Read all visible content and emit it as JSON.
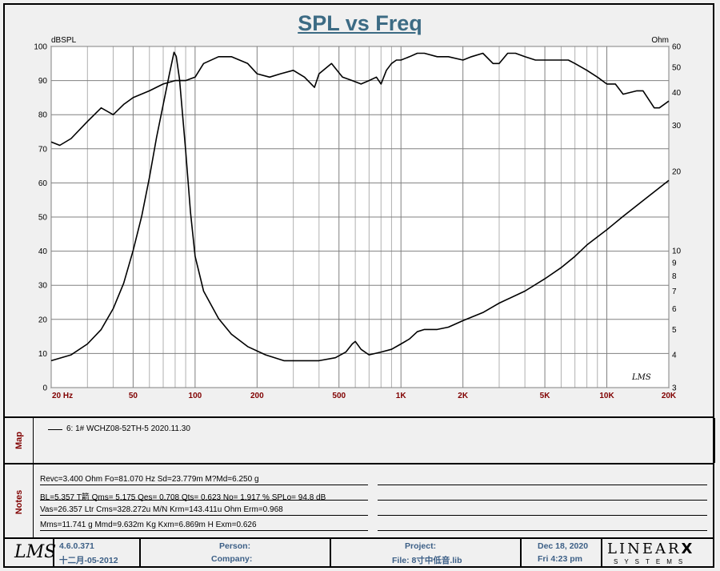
{
  "title": "SPL vs Freq",
  "chart_data": {
    "type": "line",
    "title": "SPL vs Freq",
    "xlabel": "",
    "ylabel_left": "dBSPL",
    "ylabel_right": "Ohm",
    "x_scale": "log",
    "xlim": [
      20,
      20000
    ],
    "ylim_left": [
      0,
      100
    ],
    "ylim_right": [
      3,
      60
    ],
    "y_scale_right": "log",
    "grid": true,
    "x_ticks": [
      20,
      50,
      100,
      200,
      500,
      1000,
      2000,
      5000,
      10000,
      20000
    ],
    "x_tick_labels": [
      "20  Hz",
      "50",
      "100",
      "200",
      "500",
      "1K",
      "2K",
      "5K",
      "10K",
      "20K"
    ],
    "y_ticks_left": [
      0,
      10,
      20,
      30,
      40,
      50,
      60,
      70,
      80,
      90,
      100
    ],
    "y_ticks_right": [
      3,
      4,
      5,
      6,
      7,
      8,
      9,
      10,
      20,
      30,
      40,
      50,
      60
    ],
    "series": [
      {
        "axis": "left",
        "x": [
          20,
          22,
          25,
          30,
          35,
          40,
          45,
          50,
          60,
          70,
          80,
          90,
          100,
          110,
          130,
          150,
          180,
          200,
          230,
          260,
          300,
          340,
          380,
          400,
          460,
          520,
          580,
          640,
          700,
          760,
          800,
          850,
          900,
          950,
          1000,
          1100,
          1200,
          1300,
          1500,
          1700,
          2000,
          2200,
          2500,
          2800,
          3000,
          3300,
          3600,
          4000,
          4500,
          5000,
          5500,
          6000,
          6500,
          7000,
          8000,
          9000,
          10000,
          11000,
          12000,
          14000,
          15000,
          17000,
          18000,
          20000
        ],
        "y": [
          72,
          71,
          73,
          78,
          82,
          80,
          83,
          85,
          87,
          89,
          90,
          90,
          91,
          95,
          97,
          97,
          95,
          92,
          91,
          92,
          93,
          91,
          88,
          92,
          95,
          91,
          90,
          89,
          90,
          91,
          89,
          93,
          95,
          96,
          96,
          97,
          98,
          98,
          97,
          97,
          96,
          97,
          98,
          95,
          95,
          98,
          98,
          97,
          96,
          96,
          96,
          96,
          96,
          95,
          93,
          91,
          89,
          89,
          86,
          87,
          87,
          82,
          82,
          84
        ]
      },
      {
        "axis": "right",
        "x": [
          20,
          25,
          30,
          35,
          40,
          45,
          50,
          55,
          60,
          65,
          70,
          75,
          79,
          81,
          84,
          90,
          95,
          100,
          110,
          130,
          150,
          180,
          220,
          270,
          330,
          400,
          480,
          540,
          580,
          600,
          640,
          700,
          800,
          900,
          1000,
          1100,
          1200,
          1300,
          1500,
          1700,
          2000,
          2500,
          3000,
          4000,
          5000,
          6000,
          7000,
          8000,
          10000,
          12000,
          15000,
          20000
        ],
        "y": [
          3.8,
          4.0,
          4.4,
          5.0,
          6.0,
          7.5,
          10.0,
          13.5,
          19.0,
          27.0,
          36.0,
          47.0,
          57.0,
          55.0,
          45.0,
          24.0,
          14.0,
          9.5,
          7.0,
          5.5,
          4.8,
          4.3,
          4.0,
          3.8,
          3.8,
          3.8,
          3.9,
          4.1,
          4.4,
          4.5,
          4.2,
          4.0,
          4.1,
          4.2,
          4.4,
          4.6,
          4.9,
          5.0,
          5.0,
          5.1,
          5.4,
          5.8,
          6.3,
          7.0,
          7.8,
          8.6,
          9.5,
          10.5,
          12.0,
          13.5,
          15.5,
          18.5
        ]
      }
    ]
  },
  "map": {
    "label": "Map",
    "entry": "6: 1# WCHZ08-52TH-5  2020.11.30"
  },
  "notes": {
    "label": "Notes",
    "lines": [
      "Revc=3.400 Ohm  Fo=81.070 Hz  Sd=23.779m M?Md=6.250 g",
      "BL=5.357 T箭  Qms= 5.175  Qes= 0.708  Qts= 0.623  No= 1.917 %  SPLo= 94.8 dB",
      "Vas=26.357 Ltr  Cms=328.272u M/N  Krm=143.411u Ohm  Erm=0.968",
      "Mms=11.741 g  Mmd=9.632m Kg  Kxm=6.869m H  Exm=0.626"
    ]
  },
  "footer": {
    "logo": "LMS",
    "version": "4.6.0.371",
    "build_date": "十二月-05-2012",
    "person_label": "Person:",
    "company_label": "Company:",
    "project_label": "Project:",
    "file_label": "File: 8寸中低音.lib",
    "date": "Dec 18, 2020",
    "time": "Fri  4:23 pm",
    "brand": "LINEAR",
    "brand_x": "X",
    "brand_sub": "SYSTEMS"
  },
  "watermark": "LMS"
}
